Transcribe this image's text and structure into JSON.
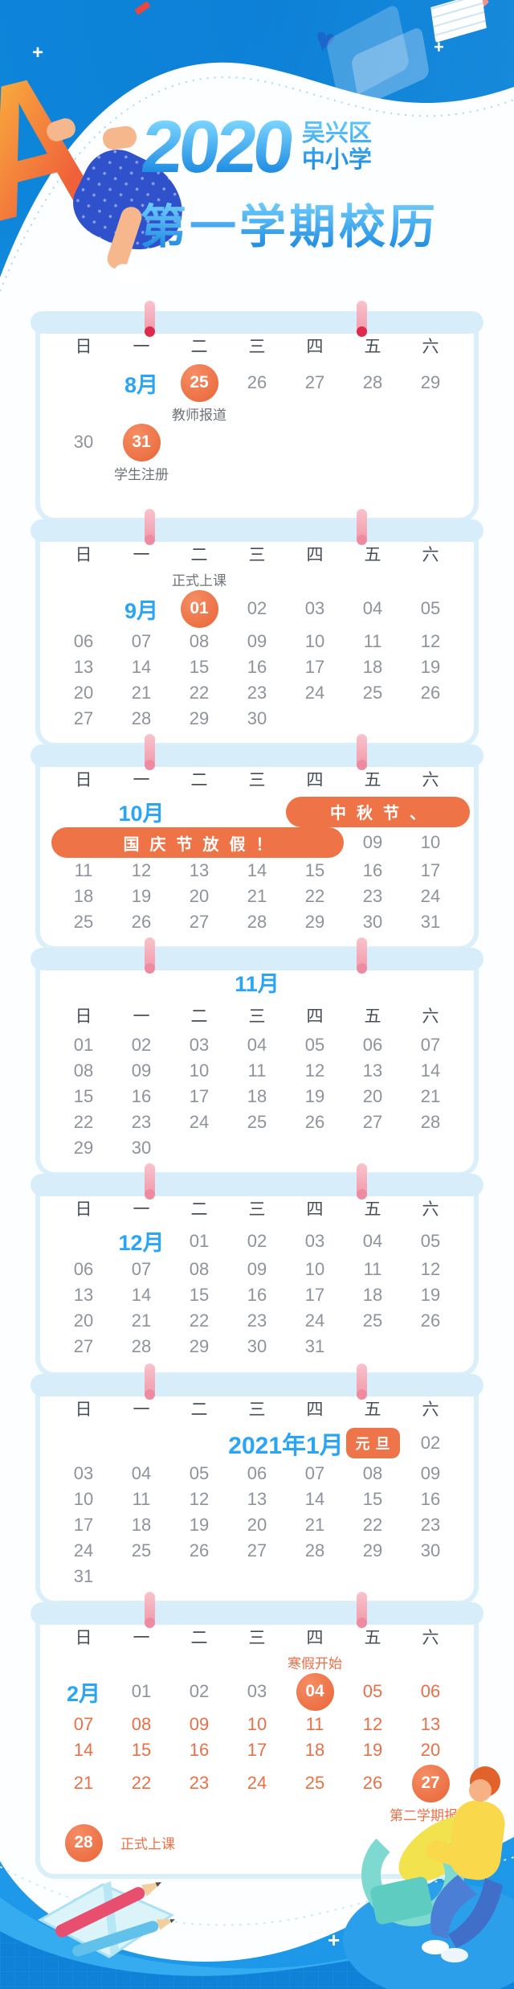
{
  "header": {
    "year": "2020",
    "region_line1": "吴兴区",
    "region_line2": "中小学",
    "title": "第一学期校历"
  },
  "weekdays": [
    "日",
    "一",
    "二",
    "三",
    "四",
    "五",
    "六"
  ],
  "colors": {
    "accent_orange": "#ee7448",
    "month_blue": "#2aa5f5",
    "background_blue": "#22a0ec",
    "day_gray": "#8e939b",
    "pin_pink": "#f3a3b1"
  },
  "months": [
    {
      "id": "2020-08",
      "rows": [
        [
          {},
          {
            "y": "m",
            "t": "8月"
          },
          {
            "y": "c",
            "t": "25",
            "lb": "教师报道",
            "lp": "b"
          },
          {
            "t": "26"
          },
          {
            "t": "27"
          },
          {
            "t": "28"
          },
          {
            "t": "29"
          }
        ],
        [
          {
            "t": "30"
          },
          {
            "y": "c",
            "t": "31",
            "lb": "学生注册",
            "lp": "b"
          },
          {},
          {},
          {},
          {},
          {}
        ]
      ]
    },
    {
      "id": "2020-09",
      "rows": [
        [
          {},
          {
            "y": "m",
            "t": "9月"
          },
          {
            "y": "c",
            "t": "01",
            "lb": "正式上课",
            "lp": "a"
          },
          {
            "t": "02"
          },
          {
            "t": "03"
          },
          {
            "t": "04"
          },
          {
            "t": "05"
          }
        ],
        [
          {
            "t": "06"
          },
          {
            "t": "07"
          },
          {
            "t": "08"
          },
          {
            "t": "09"
          },
          {
            "t": "10"
          },
          {
            "t": "11"
          },
          {
            "t": "12"
          }
        ],
        [
          {
            "t": "13"
          },
          {
            "t": "14"
          },
          {
            "t": "15"
          },
          {
            "t": "16"
          },
          {
            "t": "17"
          },
          {
            "t": "18"
          },
          {
            "t": "19"
          }
        ],
        [
          {
            "t": "20"
          },
          {
            "t": "21"
          },
          {
            "t": "22"
          },
          {
            "t": "23"
          },
          {
            "t": "24"
          },
          {
            "t": "25"
          },
          {
            "t": "26"
          }
        ],
        [
          {
            "t": "27"
          },
          {
            "t": "28"
          },
          {
            "t": "29"
          },
          {
            "t": "30"
          },
          {},
          {},
          {}
        ]
      ]
    },
    {
      "id": "2020-10",
      "rows": [
        [
          {},
          {
            "y": "m",
            "t": "10月"
          },
          {},
          {},
          {
            "y": "bn",
            "t": "中秋节、",
            "span": 3,
            "edge": "r"
          }
        ],
        [
          {
            "y": "bn",
            "t": "国庆节放假！",
            "span": 5,
            "edge": "l"
          },
          {
            "t": "09"
          },
          {
            "t": "10"
          }
        ],
        [
          {
            "t": "11"
          },
          {
            "t": "12"
          },
          {
            "t": "13"
          },
          {
            "t": "14"
          },
          {
            "t": "15"
          },
          {
            "t": "16"
          },
          {
            "t": "17"
          }
        ],
        [
          {
            "t": "18"
          },
          {
            "t": "19"
          },
          {
            "t": "20"
          },
          {
            "t": "21"
          },
          {
            "t": "22"
          },
          {
            "t": "23"
          },
          {
            "t": "24"
          }
        ],
        [
          {
            "t": "25"
          },
          {
            "t": "26"
          },
          {
            "t": "27"
          },
          {
            "t": "28"
          },
          {
            "t": "29"
          },
          {
            "t": "30"
          },
          {
            "t": "31"
          }
        ]
      ]
    },
    {
      "id": "2020-11",
      "title": "11月",
      "rows": [
        [
          {
            "t": "01"
          },
          {
            "t": "02"
          },
          {
            "t": "03"
          },
          {
            "t": "04"
          },
          {
            "t": "05"
          },
          {
            "t": "06"
          },
          {
            "t": "07"
          }
        ],
        [
          {
            "t": "08"
          },
          {
            "t": "09"
          },
          {
            "t": "10"
          },
          {
            "t": "11"
          },
          {
            "t": "12"
          },
          {
            "t": "13"
          },
          {
            "t": "14"
          }
        ],
        [
          {
            "t": "15"
          },
          {
            "t": "16"
          },
          {
            "t": "17"
          },
          {
            "t": "18"
          },
          {
            "t": "19"
          },
          {
            "t": "20"
          },
          {
            "t": "21"
          }
        ],
        [
          {
            "t": "22"
          },
          {
            "t": "23"
          },
          {
            "t": "24"
          },
          {
            "t": "25"
          },
          {
            "t": "26"
          },
          {
            "t": "27"
          },
          {
            "t": "28"
          }
        ],
        [
          {
            "t": "29"
          },
          {
            "t": "30"
          },
          {},
          {},
          {},
          {},
          {}
        ]
      ]
    },
    {
      "id": "2020-12",
      "rows": [
        [
          {},
          {
            "y": "m",
            "t": "12月"
          },
          {
            "t": "01"
          },
          {
            "t": "02"
          },
          {
            "t": "03"
          },
          {
            "t": "04"
          },
          {
            "t": "05"
          }
        ],
        [
          {
            "t": "06"
          },
          {
            "t": "07"
          },
          {
            "t": "08"
          },
          {
            "t": "09"
          },
          {
            "t": "10"
          },
          {
            "t": "11"
          },
          {
            "t": "12"
          }
        ],
        [
          {
            "t": "13"
          },
          {
            "t": "14"
          },
          {
            "t": "15"
          },
          {
            "t": "16"
          },
          {
            "t": "17"
          },
          {
            "t": "18"
          },
          {
            "t": "19"
          }
        ],
        [
          {
            "t": "20"
          },
          {
            "t": "21"
          },
          {
            "t": "22"
          },
          {
            "t": "23"
          },
          {
            "t": "24"
          },
          {
            "t": "25"
          },
          {
            "t": "26"
          }
        ],
        [
          {
            "t": "27"
          },
          {
            "t": "28"
          },
          {
            "t": "29"
          },
          {
            "t": "30"
          },
          {
            "t": "31"
          },
          {},
          {}
        ]
      ]
    },
    {
      "id": "2021-01",
      "rows": [
        [
          {},
          {},
          {},
          {
            "y": "m2",
            "t": "2021年1月",
            "span": 2
          },
          {
            "y": "bg",
            "t": "元旦"
          },
          {
            "t": "02"
          }
        ],
        [
          {
            "t": "03"
          },
          {
            "t": "04"
          },
          {
            "t": "05"
          },
          {
            "t": "06"
          },
          {
            "t": "07"
          },
          {
            "t": "08"
          },
          {
            "t": "09"
          }
        ],
        [
          {
            "t": "10"
          },
          {
            "t": "11"
          },
          {
            "t": "12"
          },
          {
            "t": "13"
          },
          {
            "t": "14"
          },
          {
            "t": "15"
          },
          {
            "t": "16"
          }
        ],
        [
          {
            "t": "17"
          },
          {
            "t": "18"
          },
          {
            "t": "19"
          },
          {
            "t": "20"
          },
          {
            "t": "21"
          },
          {
            "t": "22"
          },
          {
            "t": "23"
          }
        ],
        [
          {
            "t": "24"
          },
          {
            "t": "25"
          },
          {
            "t": "26"
          },
          {
            "t": "27"
          },
          {
            "t": "28"
          },
          {
            "t": "29"
          },
          {
            "t": "30"
          }
        ],
        [
          {
            "t": "31"
          },
          {},
          {},
          {},
          {},
          {},
          {}
        ]
      ]
    },
    {
      "id": "2021-02",
      "rows": [
        [
          {
            "y": "m",
            "t": "2月"
          },
          {
            "t": "01"
          },
          {
            "t": "02"
          },
          {
            "t": "03"
          },
          {
            "y": "c",
            "t": "04",
            "lb": "寒假开始",
            "lp": "a",
            "lc": "o"
          },
          {
            "t": "05",
            "c": "o"
          },
          {
            "t": "06",
            "c": "o"
          }
        ],
        [
          {
            "t": "07",
            "c": "o"
          },
          {
            "t": "08",
            "c": "o"
          },
          {
            "t": "09",
            "c": "o"
          },
          {
            "t": "10",
            "c": "o"
          },
          {
            "t": "11",
            "c": "o"
          },
          {
            "t": "12",
            "c": "o"
          },
          {
            "t": "13",
            "c": "o"
          }
        ],
        [
          {
            "t": "14",
            "c": "o"
          },
          {
            "t": "15",
            "c": "o"
          },
          {
            "t": "16",
            "c": "o"
          },
          {
            "t": "17",
            "c": "o"
          },
          {
            "t": "18",
            "c": "o"
          },
          {
            "t": "19",
            "c": "o"
          },
          {
            "t": "20",
            "c": "o"
          }
        ],
        [
          {
            "t": "21",
            "c": "o"
          },
          {
            "t": "22",
            "c": "o"
          },
          {
            "t": "23",
            "c": "o"
          },
          {
            "t": "24",
            "c": "o"
          },
          {
            "t": "25",
            "c": "o"
          },
          {
            "t": "26",
            "c": "o"
          },
          {
            "y": "c",
            "t": "27",
            "lb": "第二学期报道",
            "lp": "b",
            "lc": "o"
          }
        ],
        [
          {
            "y": "c",
            "t": "28",
            "lb": "正式上课",
            "lp": "r",
            "lc": "o"
          },
          {},
          {},
          {},
          {},
          {},
          {}
        ]
      ]
    }
  ]
}
